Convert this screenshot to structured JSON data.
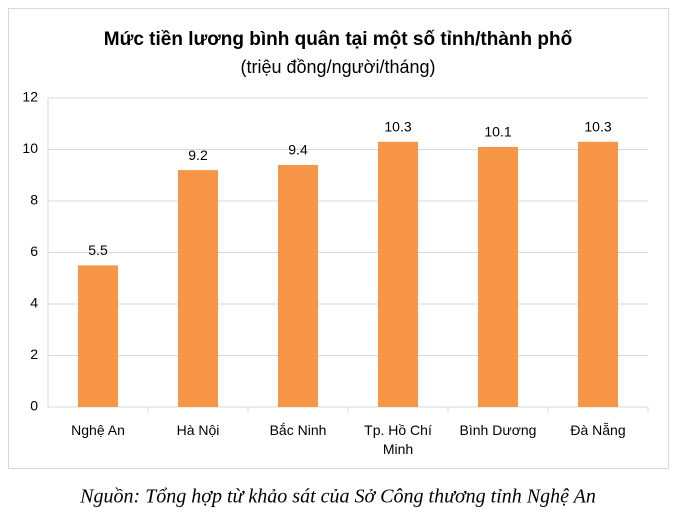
{
  "chart_data": {
    "type": "bar",
    "title": "Mức tiền lương bình quân tại một số tỉnh/thành phố",
    "subtitle": "(triệu đồng/người/tháng)",
    "categories": [
      "Nghệ An",
      "Hà Nội",
      "Bắc Ninh",
      "Tp. Hồ Chí Minh",
      "Bình Dương",
      "Đà Nẵng"
    ],
    "values": [
      5.5,
      9.2,
      9.4,
      10.3,
      10.1,
      10.3
    ],
    "color": "#f79646",
    "ylim": [
      0,
      12
    ],
    "yticks": [
      0,
      2,
      4,
      6,
      8,
      10,
      12
    ],
    "grid": true,
    "source": "Nguồn: Tổng hợp từ khảo sát của Sở Công thương tỉnh Nghệ An"
  }
}
